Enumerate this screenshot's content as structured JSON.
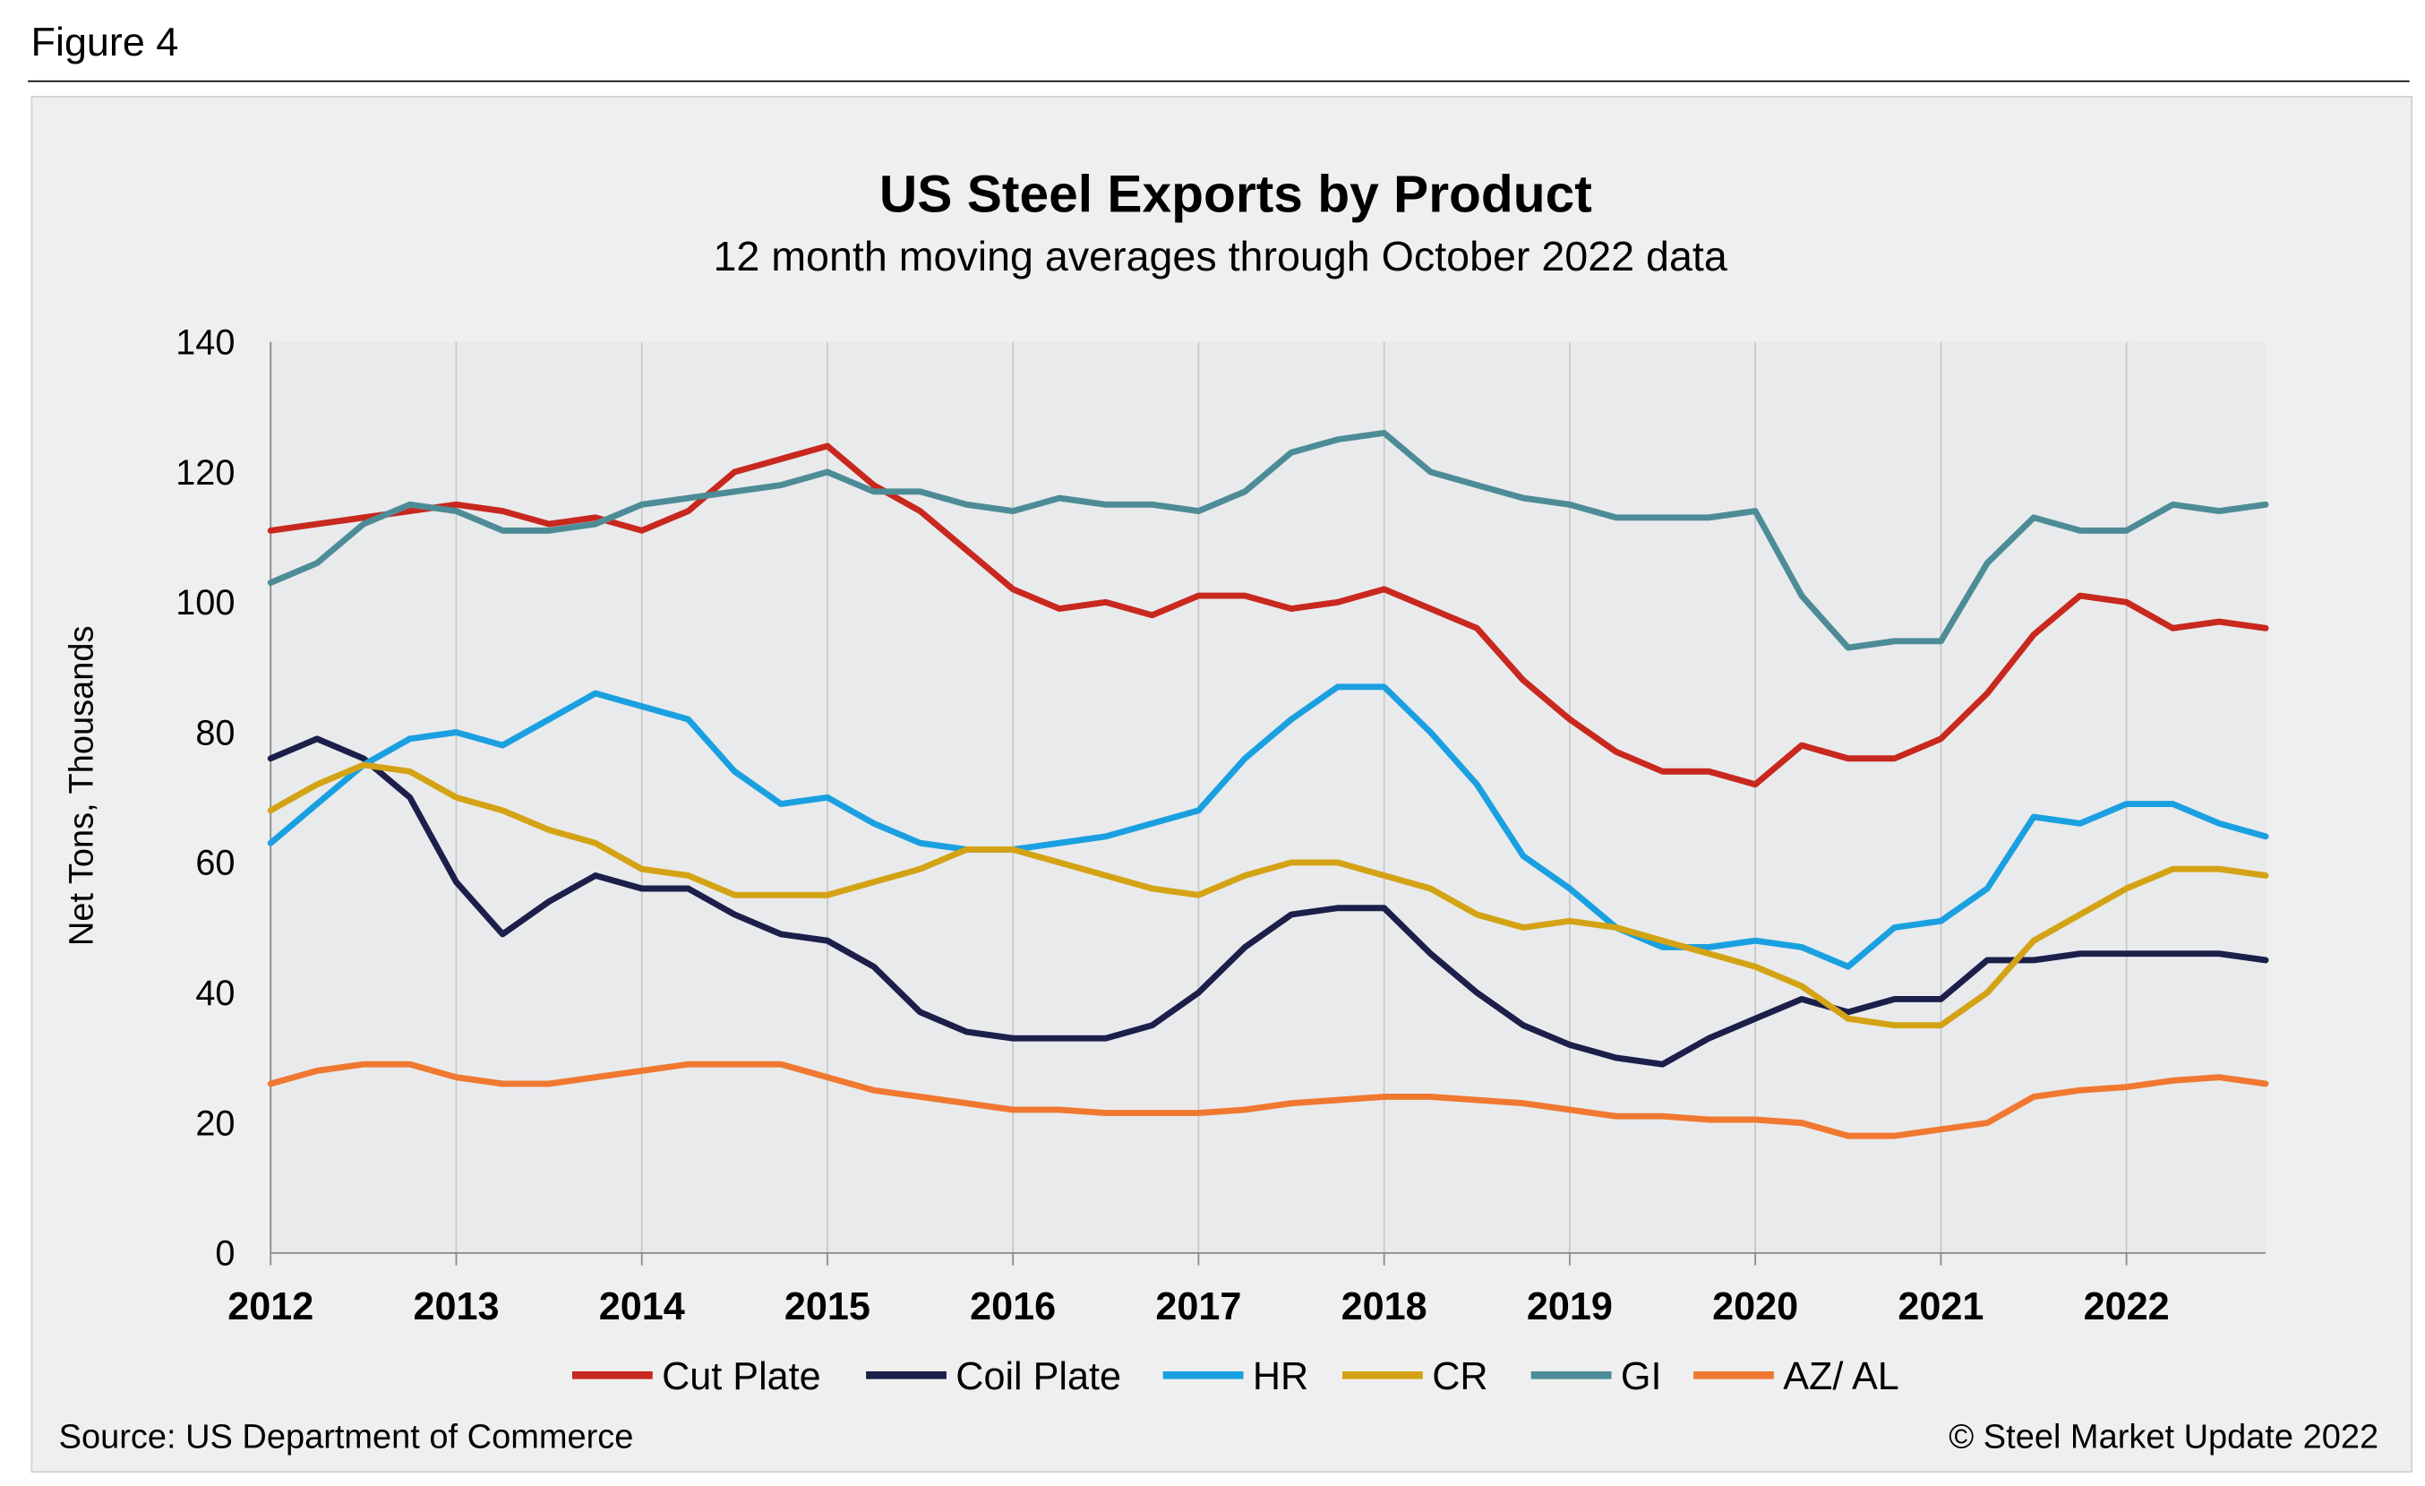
{
  "figure_label": "Figure 4",
  "source": "Source: US Department of Commerce",
  "copyright": "© Steel Market Update 2022",
  "chart_data": {
    "type": "line",
    "title": "US Steel Exports by Product",
    "subtitle": "12 month moving averages through October 2022 data",
    "xlabel": "",
    "ylabel": "Net Tons, Thousands",
    "xlim": [
      2012,
      2022.83
    ],
    "ylim": [
      0,
      140
    ],
    "x_ticks": [
      "2012",
      "2013",
      "2014",
      "2015",
      "2016",
      "2017",
      "2018",
      "2019",
      "2020",
      "2021",
      "2022"
    ],
    "y_ticks": [
      "0",
      "20",
      "40",
      "60",
      "80",
      "100",
      "120",
      "140"
    ],
    "grid": "vertical",
    "legend": "bottom",
    "x": [
      2012,
      2012.25,
      2012.5,
      2012.75,
      2013,
      2013.25,
      2013.5,
      2013.75,
      2014,
      2014.25,
      2014.5,
      2014.75,
      2015,
      2015.25,
      2015.5,
      2015.75,
      2016,
      2016.25,
      2016.5,
      2016.75,
      2017,
      2017.25,
      2017.5,
      2017.75,
      2018,
      2018.25,
      2018.5,
      2018.75,
      2019,
      2019.25,
      2019.5,
      2019.75,
      2020,
      2020.25,
      2020.5,
      2020.75,
      2021,
      2021.25,
      2021.5,
      2021.75,
      2022,
      2022.25,
      2022.5,
      2022.75
    ],
    "series": [
      {
        "name": "Cut Plate",
        "color": "#c8281e",
        "values": [
          111,
          112,
          113,
          114,
          115,
          114,
          112,
          113,
          111,
          114,
          120,
          122,
          124,
          118,
          114,
          108,
          102,
          99,
          100,
          98,
          101,
          101,
          99,
          100,
          102,
          99,
          96,
          88,
          82,
          77,
          74,
          74,
          72,
          78,
          76,
          76,
          79,
          86,
          95,
          101,
          100,
          96,
          97,
          96
        ]
      },
      {
        "name": "Coil Plate",
        "color": "#1b1f4a",
        "values": [
          76,
          79,
          76,
          70,
          57,
          49,
          54,
          58,
          56,
          56,
          52,
          49,
          48,
          44,
          37,
          34,
          33,
          33,
          33,
          35,
          40,
          47,
          52,
          53,
          53,
          46,
          40,
          35,
          32,
          30,
          29,
          33,
          36,
          39,
          37,
          39,
          39,
          45,
          45,
          46,
          46,
          46,
          46,
          45
        ]
      },
      {
        "name": "HR",
        "color": "#1aa0e0",
        "values": [
          63,
          69,
          75,
          79,
          80,
          78,
          82,
          86,
          84,
          82,
          74,
          69,
          70,
          66,
          63,
          62,
          62,
          63,
          64,
          66,
          68,
          76,
          82,
          87,
          87,
          80,
          72,
          61,
          56,
          50,
          47,
          47,
          48,
          47,
          44,
          50,
          51,
          56,
          67,
          66,
          69,
          69,
          66,
          64
        ]
      },
      {
        "name": "CR",
        "color": "#d4a315",
        "values": [
          68,
          72,
          75,
          74,
          70,
          68,
          65,
          63,
          59,
          58,
          55,
          55,
          55,
          57,
          59,
          62,
          62,
          60,
          58,
          56,
          55,
          58,
          60,
          60,
          58,
          56,
          52,
          50,
          51,
          50,
          48,
          46,
          44,
          41,
          36,
          35,
          35,
          40,
          48,
          52,
          56,
          59,
          59,
          58
        ]
      },
      {
        "name": "GI",
        "color": "#4d8c96",
        "values": [
          103,
          106,
          112,
          115,
          114,
          111,
          111,
          112,
          115,
          116,
          117,
          118,
          120,
          117,
          117,
          115,
          114,
          116,
          115,
          115,
          114,
          117,
          123,
          125,
          126,
          120,
          118,
          116,
          115,
          113,
          113,
          113,
          114,
          101,
          93,
          94,
          94,
          106,
          113,
          111,
          111,
          115,
          114,
          115
        ]
      },
      {
        "name": "AZ/ AL",
        "color": "#f07830",
        "values": [
          26,
          28,
          29,
          29,
          27,
          26,
          26,
          27,
          28,
          29,
          29,
          29,
          27,
          25,
          24,
          23,
          22,
          22,
          21.5,
          21.5,
          21.5,
          22,
          23,
          23.5,
          24,
          24,
          23.5,
          23,
          22,
          21,
          21,
          20.5,
          20.5,
          20,
          18,
          18,
          19,
          20,
          24,
          25,
          25.5,
          26.5,
          27,
          26
        ]
      }
    ]
  }
}
